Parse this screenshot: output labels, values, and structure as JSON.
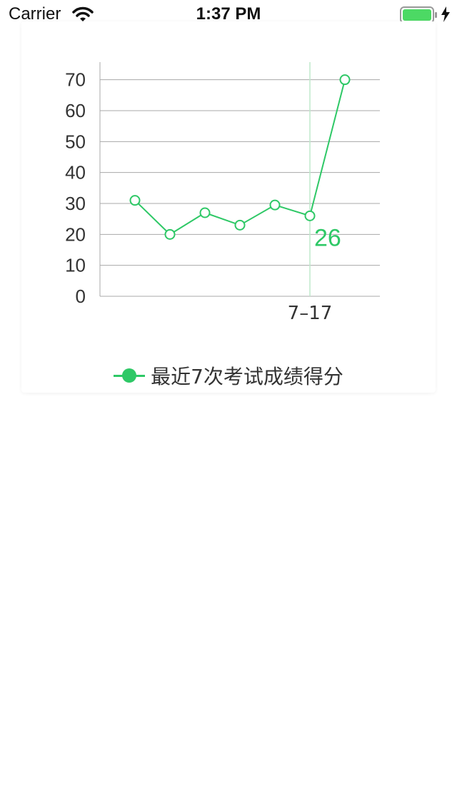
{
  "status_bar": {
    "carrier": "Carrier",
    "time": "1:37 PM"
  },
  "chart_data": {
    "type": "line",
    "y_ticks": [
      "0",
      "10",
      "20",
      "30",
      "40",
      "50",
      "60",
      "70"
    ],
    "ylim": [
      0,
      75
    ],
    "x_tick_labels": [
      {
        "index": 5,
        "label": "7–17"
      }
    ],
    "series": [
      {
        "name": "最近7次考试成绩得分",
        "values": [
          31,
          20,
          27,
          23,
          29.5,
          26,
          70
        ],
        "color": "#2ec866"
      }
    ],
    "highlight": {
      "index": 5,
      "value_label": "26"
    },
    "grid": true,
    "legend_position": "bottom-center"
  }
}
